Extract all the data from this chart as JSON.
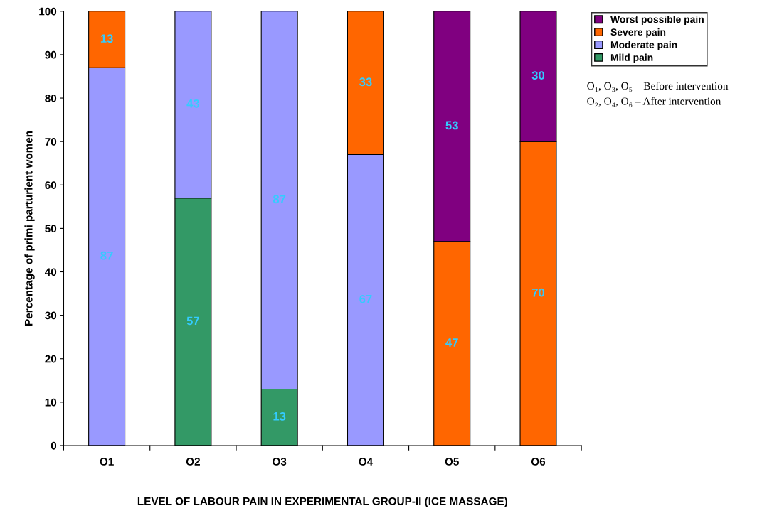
{
  "chart_data": {
    "type": "bar",
    "stacked": true,
    "xlabel": "LEVEL OF LABOUR PAIN IN EXPERIMENTAL GROUP-II (ICE MASSAGE)",
    "ylabel": "Percentage of primi parturient women",
    "categories": [
      "O1",
      "O2",
      "O3",
      "O4",
      "O5",
      "O6"
    ],
    "series": [
      {
        "name": "Mild pain",
        "color": "#339966",
        "values": [
          0,
          57,
          13,
          0,
          0,
          0
        ],
        "value_labels": [
          null,
          "57",
          "13",
          null,
          null,
          null
        ]
      },
      {
        "name": "Moderate pain",
        "color": "#9999ff",
        "values": [
          87,
          43,
          87,
          67,
          0,
          0
        ],
        "value_labels": [
          "87",
          "43",
          "87",
          "67",
          null,
          null
        ]
      },
      {
        "name": "Severe pain",
        "color": "#ff6600",
        "values": [
          13,
          0,
          0,
          33,
          47,
          70
        ],
        "value_labels": [
          "13",
          null,
          null,
          "33",
          "47",
          "70"
        ]
      },
      {
        "name": "Worst possible pain",
        "color": "#800080",
        "values": [
          0,
          0,
          0,
          0,
          53,
          30
        ],
        "value_labels": [
          null,
          null,
          null,
          null,
          "53",
          "30"
        ]
      }
    ],
    "ylim": [
      0,
      100
    ],
    "yticks": [
      0,
      10,
      20,
      30,
      40,
      50,
      60,
      70,
      80,
      90,
      100
    ],
    "grid": false,
    "legend": "top right",
    "annotations": [
      "O₁, O₃, O₅ – Before intervention",
      "O₂, O₄, O₆ – After intervention"
    ]
  }
}
